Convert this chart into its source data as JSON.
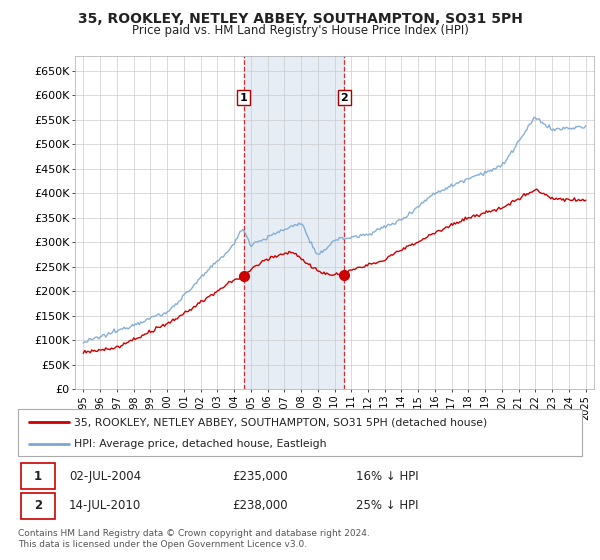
{
  "title": "35, ROOKLEY, NETLEY ABBEY, SOUTHAMPTON, SO31 5PH",
  "subtitle": "Price paid vs. HM Land Registry's House Price Index (HPI)",
  "legend_line1": "35, ROOKLEY, NETLEY ABBEY, SOUTHAMPTON, SO31 5PH (detached house)",
  "legend_line2": "HPI: Average price, detached house, Eastleigh",
  "transaction1_date": "02-JUL-2004",
  "transaction1_price": "£235,000",
  "transaction1_hpi": "16% ↓ HPI",
  "transaction2_date": "14-JUL-2010",
  "transaction2_price": "£238,000",
  "transaction2_hpi": "25% ↓ HPI",
  "footer": "Contains HM Land Registry data © Crown copyright and database right 2024.\nThis data is licensed under the Open Government Licence v3.0.",
  "ylim": [
    0,
    680000
  ],
  "yticks": [
    0,
    50000,
    100000,
    150000,
    200000,
    250000,
    300000,
    350000,
    400000,
    450000,
    500000,
    550000,
    600000,
    650000
  ],
  "hpi_color": "#7ba7d4",
  "price_color": "#cc0000",
  "bg_color": "#ffffff",
  "grid_color": "#cccccc",
  "shade_color": "#dce6f1",
  "transaction1_x": 2004.58,
  "transaction2_x": 2010.58,
  "xlim_left": 1994.5,
  "xlim_right": 2025.5
}
